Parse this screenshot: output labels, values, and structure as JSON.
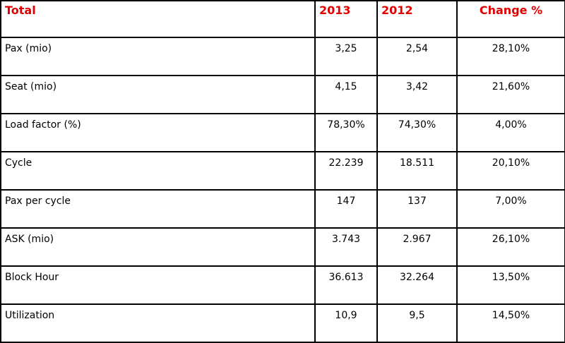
{
  "accent_color": "#e00000",
  "table": {
    "headers": [
      "Total",
      "2013",
      "2012",
      "Change %"
    ],
    "rows": [
      [
        "Pax (mio)",
        "3,25",
        "2,54",
        "28,10%"
      ],
      [
        "Seat (mio)",
        "4,15",
        "3,42",
        "21,60%"
      ],
      [
        "Load factor (%)",
        "78,30%",
        "74,30%",
        "4,00%"
      ],
      [
        "Cycle",
        "22.239",
        "18.511",
        "20,10%"
      ],
      [
        "Pax per cycle",
        "147",
        "137",
        "7,00%"
      ],
      [
        "ASK (mio)",
        "3.743",
        "2.967",
        "26,10%"
      ],
      [
        "Block Hour",
        "36.613",
        "32.264",
        "13,50%"
      ],
      [
        "Utilization",
        "10,9",
        "9,5",
        "14,50%"
      ]
    ]
  }
}
